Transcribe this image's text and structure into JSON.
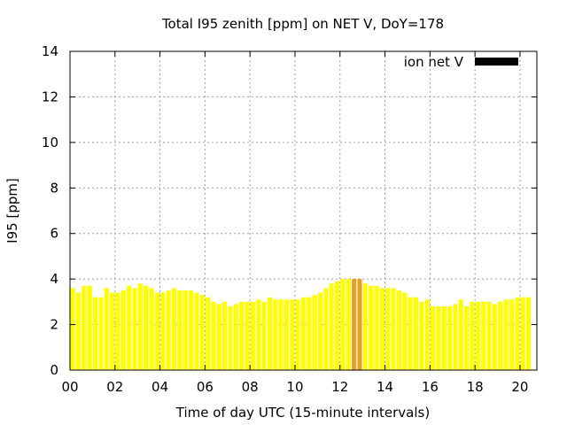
{
  "chart_data": {
    "type": "bar",
    "title": "Total I95 zenith [ppm] on NET V, DoY=178",
    "xlabel": "Time of day UTC (15-minute intervals)",
    "ylabel": "I95 [ppm]",
    "xlim": [
      0,
      20.75
    ],
    "ylim": [
      0,
      14
    ],
    "xticks": [
      0,
      2,
      4,
      6,
      8,
      10,
      12,
      14,
      16,
      18,
      20
    ],
    "xtick_labels": [
      "00",
      "02",
      "04",
      "06",
      "08",
      "10",
      "12",
      "14",
      "16",
      "18",
      "20"
    ],
    "yticks": [
      0,
      2,
      4,
      6,
      8,
      10,
      12,
      14
    ],
    "ytick_labels": [
      "0",
      "2",
      "4",
      "6",
      "8",
      "10",
      "12",
      "14"
    ],
    "grid": true,
    "legend": {
      "label": "ion net V",
      "position": "top-right",
      "color": "#000000"
    },
    "bar_interval_hours": 0.25,
    "highlight_color": "#e8a020",
    "bar_color": "#ffff00",
    "highlight_indices": [
      50,
      51
    ],
    "values": [
      3.6,
      3.4,
      3.7,
      3.7,
      3.2,
      3.2,
      3.6,
      3.4,
      3.4,
      3.5,
      3.7,
      3.6,
      3.8,
      3.7,
      3.6,
      3.4,
      3.4,
      3.5,
      3.6,
      3.5,
      3.5,
      3.5,
      3.4,
      3.3,
      3.2,
      3.0,
      2.9,
      3.0,
      2.8,
      2.9,
      3.0,
      3.0,
      3.0,
      3.1,
      3.0,
      3.2,
      3.1,
      3.1,
      3.1,
      3.1,
      3.1,
      3.2,
      3.2,
      3.3,
      3.4,
      3.6,
      3.8,
      3.9,
      4.0,
      4.0,
      4.0,
      4.0,
      3.8,
      3.7,
      3.7,
      3.6,
      3.6,
      3.6,
      3.5,
      3.4,
      3.2,
      3.2,
      3.0,
      3.1,
      2.8,
      2.8,
      2.8,
      2.8,
      2.9,
      3.1,
      2.8,
      3.0,
      3.0,
      3.0,
      3.0,
      2.9,
      3.0,
      3.1,
      3.1,
      3.2,
      3.2,
      3.2
    ]
  }
}
